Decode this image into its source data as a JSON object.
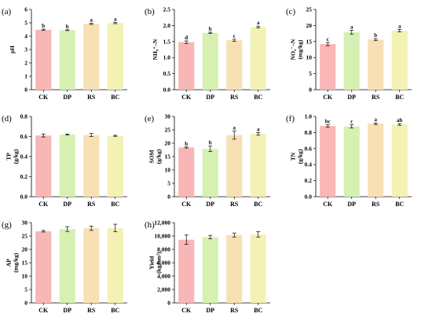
{
  "colors": {
    "CK": "#f9b6b6",
    "DP": "#d6f0b2",
    "RS": "#f7e0b4",
    "BC": "#f3f2b4"
  },
  "chart_data": [
    {
      "type": "bar",
      "panel_label": "(a)",
      "ylabel": [
        "pH"
      ],
      "categories": [
        "CK",
        "DP",
        "RS",
        "BC"
      ],
      "values": [
        4.48,
        4.45,
        4.92,
        4.98
      ],
      "errors": [
        0.05,
        0.03,
        0.04,
        0.04
      ],
      "letters": [
        "b",
        "b",
        "a",
        "a"
      ],
      "ylim": [
        0,
        6
      ],
      "yticks": [
        0,
        1,
        2,
        3,
        4,
        5,
        6
      ],
      "yticklabels": [
        "0",
        "1",
        "2",
        "3",
        "4",
        "5",
        "6"
      ]
    },
    {
      "type": "bar",
      "panel_label": "(b)",
      "ylabel": [
        "NH₄⁺–N"
      ],
      "categories": [
        "CK",
        "DP",
        "RS",
        "BC"
      ],
      "values": [
        1.48,
        1.77,
        1.54,
        1.95
      ],
      "errors": [
        0.04,
        0.02,
        0.03,
        0.03
      ],
      "letters": [
        "d",
        "b",
        "c",
        "a"
      ],
      "ylim": [
        0,
        2.5
      ],
      "yticks": [
        0,
        0.5,
        1.0,
        1.5,
        2.0,
        2.5
      ],
      "yticklabels": [
        "0.0",
        "0.5",
        "1.0",
        "1.5",
        "2.0",
        "2.5"
      ]
    },
    {
      "type": "bar",
      "panel_label": "(c)",
      "ylabel": [
        "NO₃⁻–N",
        "(mg/kg)"
      ],
      "categories": [
        "CK",
        "DP",
        "RS",
        "BC"
      ],
      "values": [
        14.2,
        17.9,
        15.6,
        18.4
      ],
      "errors": [
        0.5,
        0.6,
        0.3,
        0.4
      ],
      "letters": [
        "c",
        "a",
        "b",
        "a"
      ],
      "ylim": [
        0,
        25
      ],
      "yticks": [
        0,
        5,
        10,
        15,
        20,
        25
      ],
      "yticklabels": [
        "0",
        "5",
        "10",
        "15",
        "20",
        "25"
      ]
    },
    {
      "type": "bar",
      "panel_label": "(d)",
      "ylabel": [
        "TP",
        "(g/kg)"
      ],
      "categories": [
        "CK",
        "DP",
        "RS",
        "BC"
      ],
      "values": [
        0.61,
        0.62,
        0.615,
        0.607
      ],
      "errors": [
        0.015,
        0.005,
        0.015,
        0.005
      ],
      "letters": [
        "",
        "",
        "",
        ""
      ],
      "ylim": [
        0,
        0.8
      ],
      "yticks": [
        0,
        0.2,
        0.4,
        0.6,
        0.8
      ],
      "yticklabels": [
        "0.0",
        "0.2",
        "0.4",
        "0.6",
        "0.8"
      ]
    },
    {
      "type": "bar",
      "panel_label": "(e)",
      "ylabel": [
        "SOM",
        "(g/kg)"
      ],
      "categories": [
        "CK",
        "DP",
        "RS",
        "BC"
      ],
      "values": [
        18.4,
        17.9,
        23.0,
        23.5
      ],
      "errors": [
        0.2,
        1.0,
        1.5,
        0.5
      ],
      "letters": [
        "b",
        "b",
        "a",
        "a"
      ],
      "ylim": [
        0,
        30
      ],
      "yticks": [
        0,
        5,
        10,
        15,
        20,
        25,
        30
      ],
      "yticklabels": [
        "0",
        "5",
        "10",
        "15",
        "20",
        "25",
        "30"
      ]
    },
    {
      "type": "bar",
      "panel_label": "(f)",
      "ylabel": [
        "TN",
        "(g/kg)"
      ],
      "categories": [
        "CK",
        "DP",
        "RS",
        "BC"
      ],
      "values": [
        0.88,
        0.875,
        0.91,
        0.9
      ],
      "errors": [
        0.015,
        0.02,
        0.01,
        0.01
      ],
      "letters": [
        "bc",
        "c",
        "a",
        "ab"
      ],
      "ylim": [
        0,
        1.0
      ],
      "yticks": [
        0,
        0.2,
        0.4,
        0.6,
        0.8,
        1.0
      ],
      "yticklabels": [
        "0.0",
        "0.2",
        "0.4",
        "0.6",
        "0.8",
        "1.0"
      ]
    },
    {
      "type": "bar",
      "panel_label": "(g)",
      "ylabel": [
        "AP",
        "(mg/kg)"
      ],
      "categories": [
        "CK",
        "DP",
        "RS",
        "BC"
      ],
      "values": [
        26.8,
        27.6,
        27.9,
        28.0
      ],
      "errors": [
        0.3,
        0.9,
        0.8,
        1.4
      ],
      "letters": [
        "",
        "",
        "",
        ""
      ],
      "ylim": [
        0,
        30
      ],
      "yticks": [
        0,
        5,
        10,
        15,
        20,
        25,
        30
      ],
      "yticklabels": [
        "0",
        "5",
        "10",
        "15",
        "20",
        "25",
        "30"
      ]
    },
    {
      "type": "bar",
      "panel_label": "(h)",
      "ylabel": [
        "Yield",
        "(kg/hm²)"
      ],
      "categories": [
        "CK",
        "DP",
        "RS",
        "BC"
      ],
      "values": [
        9450,
        9850,
        10150,
        10250
      ],
      "errors": [
        700,
        250,
        300,
        400
      ],
      "letters": [
        "",
        "",
        "",
        ""
      ],
      "ylim": [
        0,
        12000
      ],
      "yticks": [
        0,
        2000,
        4000,
        6000,
        8000,
        10000,
        12000
      ],
      "yticklabels": [
        "0",
        "2,000",
        "4,000",
        "6,000",
        "8,000",
        "10,000",
        "12,000"
      ]
    }
  ]
}
